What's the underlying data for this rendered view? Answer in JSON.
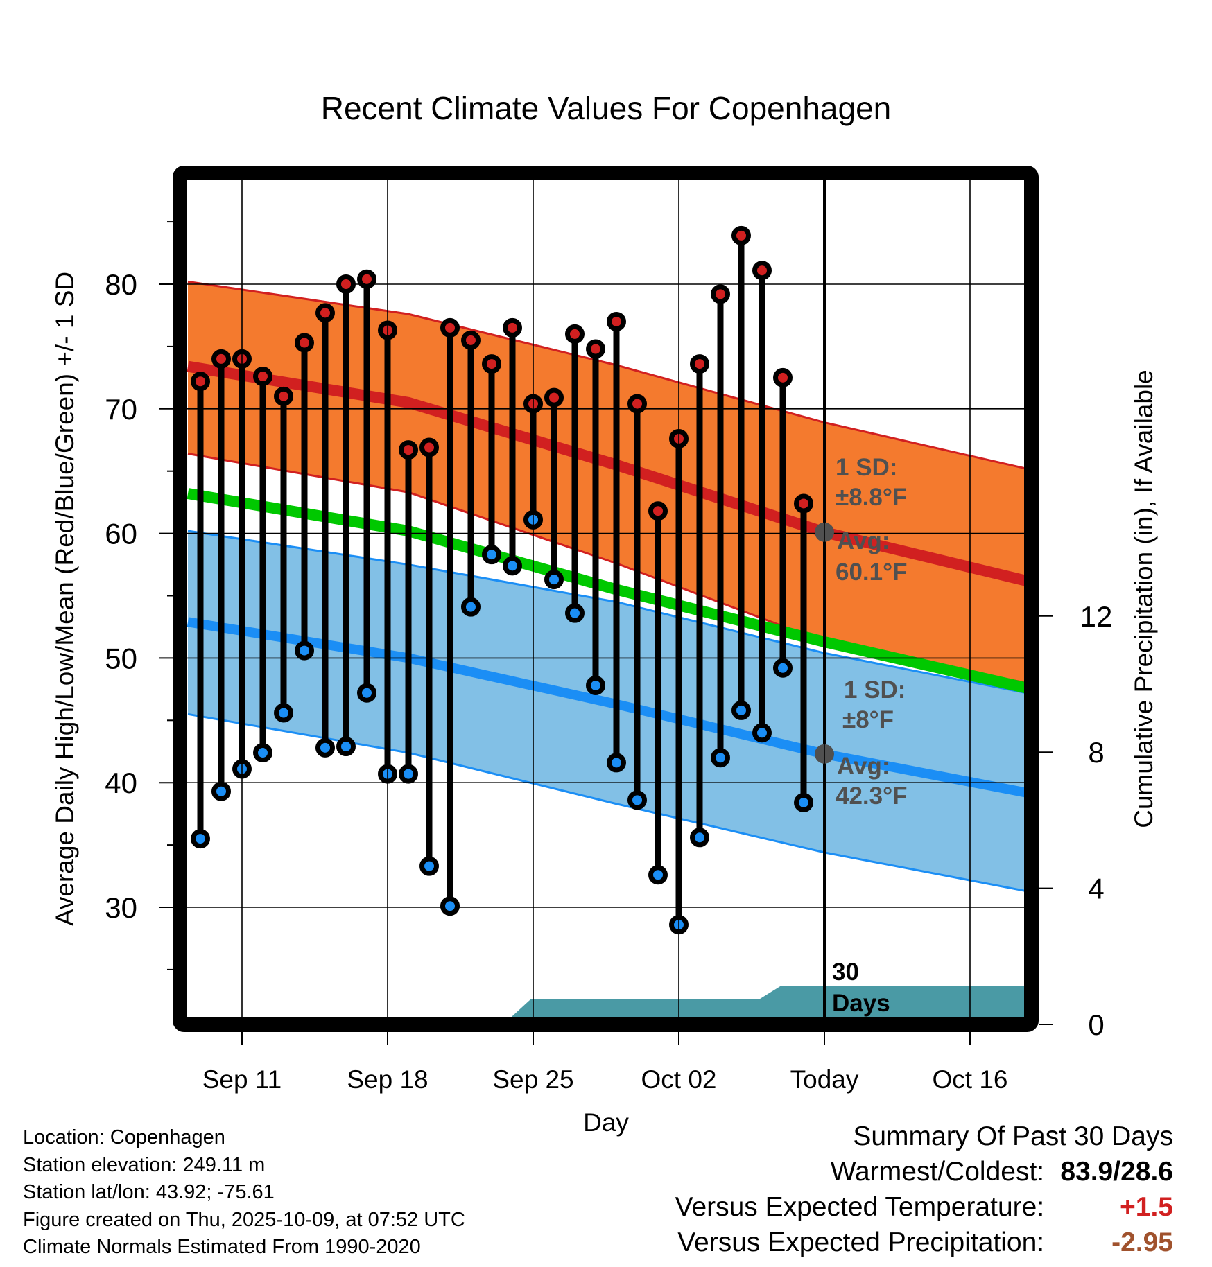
{
  "chart_data": {
    "type": "line",
    "title": "Recent Climate Values For Copenhagen",
    "xlabel": "Day",
    "ylabel": "Average Daily High/Low/Mean (Red/Blue/Green) +/- 1 SD",
    "y2label": "Cumulative Precipitation (in), If Available",
    "x_range_days_from_today": [
      -30.6,
      9.7
    ],
    "ylim": [
      21.2,
      88.3
    ],
    "y_ticks": [
      30,
      40,
      50,
      60,
      70,
      80
    ],
    "y_minor_step": 5,
    "y2lim": [
      0,
      16
    ],
    "y2_ticks": [
      0,
      4,
      8,
      12
    ],
    "x_ticks": [
      {
        "label": "Sep 11",
        "offset": -28
      },
      {
        "label": "Sep 18",
        "offset": -21
      },
      {
        "label": "Sep 25",
        "offset": -14
      },
      {
        "label": "Oct 02",
        "offset": -7
      },
      {
        "label": "Today",
        "offset": 0
      },
      {
        "label": "Oct 16",
        "offset": 7
      }
    ],
    "grid": true,
    "today_marker": {
      "offset": 0,
      "label_line1": "30",
      "label_line2": "Days"
    },
    "daily": {
      "dates": [
        "Sep 9",
        "Sep 10",
        "Sep 11",
        "Sep 12",
        "Sep 13",
        "Sep 14",
        "Sep 15",
        "Sep 16",
        "Sep 17",
        "Sep 18",
        "Sep 19",
        "Sep 20",
        "Sep 21",
        "Sep 22",
        "Sep 23",
        "Sep 24",
        "Sep 25",
        "Sep 26",
        "Sep 27",
        "Sep 28",
        "Sep 29",
        "Sep 30",
        "Oct 1",
        "Oct 2",
        "Oct 3",
        "Oct 4",
        "Oct 5",
        "Oct 6",
        "Oct 7",
        "Oct 8"
      ],
      "offsets": [
        -30,
        -29,
        -28,
        -27,
        -26,
        -25,
        -24,
        -23,
        -22,
        -21,
        -20,
        -19,
        -18,
        -17,
        -16,
        -15,
        -14,
        -13,
        -12,
        -11,
        -10,
        -9,
        -8,
        -7,
        -6,
        -5,
        -4,
        -3,
        -2,
        -1
      ],
      "highs": [
        72.2,
        74.0,
        74.0,
        72.6,
        71.0,
        75.3,
        77.7,
        80.0,
        80.4,
        76.3,
        66.7,
        66.9,
        76.5,
        75.5,
        73.6,
        76.5,
        70.4,
        70.9,
        76.0,
        74.8,
        77.0,
        70.4,
        61.8,
        67.6,
        73.6,
        79.2,
        83.9,
        81.1,
        72.5,
        62.4
      ],
      "lows": [
        35.5,
        39.3,
        41.1,
        42.4,
        45.6,
        50.6,
        42.8,
        42.9,
        47.2,
        40.7,
        40.7,
        33.3,
        30.1,
        54.1,
        58.3,
        57.4,
        61.1,
        56.3,
        53.6,
        47.8,
        41.6,
        38.6,
        32.6,
        28.6,
        35.6,
        42.0,
        45.8,
        44.0,
        49.2,
        38.4
      ]
    },
    "normals": {
      "offsets": [
        -30.6,
        -20,
        -10,
        0,
        9.7
      ],
      "high_avg": [
        73.4,
        70.5,
        65.5,
        60.1,
        56.2
      ],
      "high_upper": [
        80.2,
        77.6,
        73.5,
        68.9,
        65.2
      ],
      "high_lower": [
        66.4,
        63.3,
        57.6,
        51.3,
        48.0
      ],
      "mean": [
        63.2,
        60.2,
        55.5,
        51.3,
        47.6
      ],
      "low_avg": [
        52.9,
        50.0,
        46.3,
        42.3,
        39.2
      ],
      "low_upper": [
        60.2,
        57.5,
        54.5,
        50.4,
        47.2
      ],
      "low_lower": [
        45.5,
        42.4,
        38.3,
        34.4,
        31.3
      ]
    },
    "precip_cumulative": {
      "offsets": [
        -30.6,
        -17.6,
        -17.2,
        -16.1,
        -15.1,
        -14.1,
        -3.1,
        -2.1,
        0,
        9.7
      ],
      "values": [
        0,
        0,
        0.19,
        0.19,
        0.19,
        0.75,
        0.75,
        1.13,
        1.13,
        1.13
      ]
    },
    "annotations": {
      "high": {
        "sd_line1": "1 SD:",
        "sd_line2": "±8.8°F",
        "avg_line1": "Avg:",
        "avg_line2": "60.1°F",
        "avg_value": 60.1
      },
      "low": {
        "sd_line1": "1 SD:",
        "sd_line2": "±8°F",
        "avg_line1": "Avg:",
        "avg_line2": "42.3°F",
        "avg_value": 42.3
      }
    },
    "colors": {
      "high_band": "#f47a2e",
      "high_line": "#d12020",
      "low_band": "#82c0e6",
      "low_line": "#1b8ef5",
      "mean_line": "#00c800",
      "precip": "#4a9aa5",
      "annotation": "#505050"
    }
  },
  "info": {
    "location": "Location: Copenhagen",
    "elevation": "Station elevation: 249.11 m",
    "latlon": "Station lat/lon: 43.92; -75.61",
    "created": "Figure created on Thu, 2025-10-09, at 07:52 UTC",
    "normals": "Climate Normals Estimated From 1990-2020"
  },
  "summary": {
    "title": "Summary Of Past 30 Days",
    "warmest_coldest_label": "Warmest/Coldest:",
    "warmest_coldest_value": "83.9/28.6",
    "temp_label": "Versus Expected Temperature:",
    "temp_value": "+1.5",
    "temp_color": "#d12020",
    "precip_label": "Versus Expected Precipitation:",
    "precip_value": "-2.95",
    "precip_color": "#a0522d"
  }
}
